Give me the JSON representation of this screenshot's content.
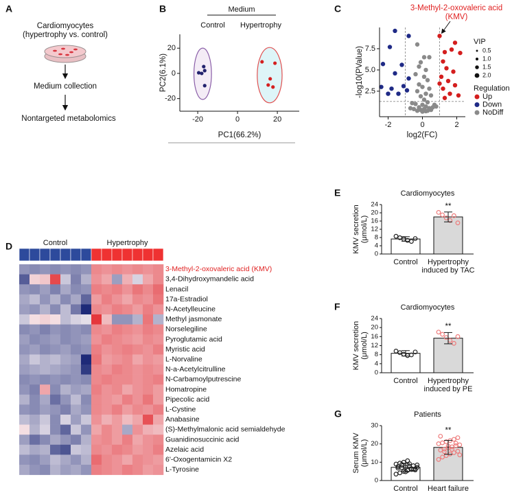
{
  "diagram": {
    "label": "A",
    "lines": [
      "Cardiomyocytes",
      "(hypertrophy vs. control)"
    ],
    "steps": [
      "Medium collection",
      "Nontargeted metabolomics"
    ]
  },
  "chart_data": [
    {
      "type": "scatter",
      "label": "B",
      "header": "Medium",
      "xlabel": "PC1(66.2%)",
      "ylabel": "PC2(6.1%)",
      "xlim": [
        -29,
        31
      ],
      "ylim": [
        -30,
        31
      ],
      "xticks": [
        -20,
        0,
        20
      ],
      "yticks": [
        -20,
        0,
        20
      ],
      "series": [
        {
          "name": "Control",
          "color": "#23236e",
          "ellipse_stroke": "#8a5ea8",
          "ellipse_fill": "#f4ecf6",
          "x": [
            -17,
            -16.5,
            -18,
            -16.5,
            -19.5
          ],
          "y": [
            5.4,
            2.2,
            0,
            -9.7,
            0.5
          ]
        },
        {
          "name": "Hypertrophy",
          "color": "#d42020",
          "ellipse_stroke": "#e05050",
          "ellipse_fill": "#def5f8",
          "x": [
            12.3,
            18.8,
            16.4,
            17.8,
            15.4
          ],
          "y": [
            9.2,
            8.1,
            -4.3,
            -10.8,
            -9.2
          ]
        }
      ]
    },
    {
      "type": "volcano",
      "label": "C",
      "annotation": [
        "3-Methyl-2-oxovaleric acid",
        "(KMV)"
      ],
      "annotation_color": "#e02020",
      "xlabel": "log2(FC)",
      "ylabel": "-log10(PValue)",
      "xlim": [
        -2.5,
        2.5
      ],
      "ylim": [
        -0.5,
        10
      ],
      "xticks": [
        -2,
        0,
        2
      ],
      "yticks": [
        2.5,
        {
          "value": 5,
          "label": "5.0"
        },
        7.5
      ],
      "vlines": [
        -1,
        1
      ],
      "hline": 1.3,
      "size_title": "VIP",
      "sizes": [
        0.5,
        {
          "value": 1,
          "label": "1.0"
        },
        1.5,
        {
          "value": 2,
          "label": "2.0"
        }
      ],
      "legend_title": "Regulation",
      "series": [
        {
          "name": "Up",
          "color": "#d41e1e",
          "x": [
            1.0,
            1.7,
            1.9,
            2.2,
            1.3,
            1.2,
            1.4,
            1.8,
            1.1,
            1.5,
            1.9,
            1.2,
            1.6,
            1.3,
            2.1,
            1.0
          ],
          "y": [
            9.0,
            7.4,
            8.2,
            7.0,
            7.1,
            6.0,
            5.2,
            4.8,
            4.2,
            3.7,
            3.2,
            2.8,
            2.2,
            1.7,
            2.0,
            3.4
          ]
        },
        {
          "name": "Down",
          "color": "#1f2a86",
          "x": [
            -1.6,
            -0.8,
            -1.9,
            -2.3,
            -1.2,
            -1.6,
            -0.8,
            -2.4,
            -1.8,
            -1.4,
            -1.1,
            -0.9,
            -2.0
          ],
          "y": [
            9.6,
            9.0,
            7.7,
            5.7,
            5.6,
            4.6,
            4.0,
            3.0,
            2.8,
            2.2,
            3.1,
            2.6,
            2.2
          ]
        },
        {
          "name": "NoDiff",
          "color": "#8a8a8a",
          "x": [
            -0.3,
            0.1,
            -0.1,
            0.4,
            -0.2,
            0.2,
            -0.4,
            0.1,
            0.3,
            -0.2,
            0.0,
            0.4,
            -0.3,
            0.2,
            0.5,
            -0.1,
            0.1,
            0.3,
            -0.4,
            0.0,
            0.2,
            -0.2,
            0.4,
            0.1,
            -0.1,
            0.3,
            0.0,
            0.6,
            -0.5,
            0.5,
            -0.3,
            0.2,
            -0.6,
            0.7,
            -0.7,
            0.8
          ],
          "y": [
            8.0,
            6.5,
            5.9,
            6.5,
            5.4,
            5.0,
            4.5,
            4.2,
            3.8,
            3.3,
            3.0,
            2.8,
            2.5,
            2.2,
            2.0,
            1.9,
            1.5,
            1.2,
            1.0,
            0.9,
            0.7,
            0.6,
            0.5,
            0.4,
            0.3,
            0.2,
            0.1,
            0.6,
            0.4,
            0.3,
            0.2,
            0.15,
            1.1,
            0.9,
            0.5,
            0.7
          ]
        }
      ]
    },
    {
      "type": "heatmap",
      "label": "D",
      "clim": [
        -2,
        2
      ],
      "low_color": "#1e2a78",
      "mid_color": "#f5eef2",
      "high_color": "#e3262b",
      "highlight_row": 0,
      "highlight_color": "#e02020",
      "groups": [
        {
          "name": "Control",
          "color": "#2d4a9c"
        },
        {
          "name": "Hypertrophy",
          "color": "#ef3232"
        }
      ],
      "rows": [
        "3-Methyl-2-oxovaleric acid (KMV)",
        "3,4-Dihydroxymandelic acid",
        "Lenacil",
        "17a-Estradiol",
        "N-Acetylleucine",
        "Methyl jasmonate",
        "Norselegiline",
        "Pyroglutamic acid",
        "Myristic acid",
        "L-Norvaline",
        "N-a-Acetylcitrulline",
        "N-Carbamoylputrescine",
        "Homatropine",
        "Pipecolic acid",
        "L-Cystine",
        "Anabasine",
        "(S)-Methylmalonic acid semialdehyde",
        "Guanidinosuccinic acid",
        "Azelaic acid",
        "6'-Oxogentamicin X2",
        "L-Tyrosine"
      ],
      "values": [
        [
          -0.8,
          -0.9,
          -0.8,
          -0.9,
          -0.8,
          -0.9,
          -0.8,
          0.9,
          0.8,
          0.9,
          0.8,
          0.9,
          0.8,
          0.9
        ],
        [
          -1.4,
          0.2,
          0.3,
          1.6,
          -0.3,
          -1.0,
          -0.5,
          0.8,
          0.6,
          -0.7,
          0.5,
          -0.2,
          0.6,
          0.9
        ],
        [
          -0.8,
          -0.9,
          -0.7,
          -1.0,
          -0.6,
          -0.9,
          -0.8,
          1.0,
          0.9,
          1.0,
          0.8,
          1.1,
          0.9,
          1.2
        ],
        [
          -0.6,
          -0.4,
          -0.8,
          -0.5,
          -0.9,
          -0.6,
          -1.3,
          0.7,
          1.0,
          0.8,
          0.6,
          0.9,
          0.8,
          1.1
        ],
        [
          -0.7,
          -0.8,
          -0.5,
          -0.9,
          -0.4,
          -1.1,
          -2.0,
          0.9,
          0.8,
          1.0,
          0.9,
          0.7,
          1.0,
          0.8
        ],
        [
          -0.3,
          0.1,
          0.2,
          0.1,
          -0.4,
          -0.2,
          -0.1,
          1.8,
          0.4,
          -0.8,
          -0.8,
          -0.5,
          1.1,
          -0.5
        ],
        [
          -0.9,
          -0.8,
          -1.0,
          -0.8,
          -0.9,
          -0.8,
          -0.9,
          0.9,
          0.8,
          1.0,
          0.9,
          0.8,
          1.0,
          0.9
        ],
        [
          -0.7,
          -0.9,
          -0.8,
          -0.7,
          -0.9,
          -0.8,
          -0.7,
          0.8,
          1.0,
          0.9,
          0.8,
          0.7,
          0.9,
          0.8
        ],
        [
          -0.8,
          -0.7,
          -0.9,
          -0.8,
          -0.7,
          -0.9,
          -0.8,
          1.0,
          0.8,
          0.9,
          1.0,
          0.9,
          0.8,
          1.0
        ],
        [
          -0.6,
          -0.3,
          -0.5,
          -0.4,
          -0.6,
          -0.7,
          -2.4,
          1.1,
          0.7,
          0.8,
          0.9,
          0.6,
          0.8,
          0.7
        ],
        [
          -0.7,
          -0.6,
          -0.5,
          -0.6,
          -0.7,
          -0.8,
          -1.8,
          0.9,
          0.8,
          1.0,
          0.9,
          0.8,
          0.9,
          0.8
        ],
        [
          -0.9,
          -0.8,
          -0.9,
          -0.8,
          -0.9,
          -0.8,
          -0.9,
          0.9,
          1.0,
          0.9,
          0.9,
          0.8,
          0.9,
          1.0
        ],
        [
          -0.8,
          -1.0,
          0.6,
          -0.9,
          -0.5,
          -0.7,
          -0.6,
          1.0,
          0.8,
          0.9,
          0.6,
          0.8,
          0.9,
          0.7
        ],
        [
          -0.5,
          -0.9,
          -0.6,
          -1.2,
          -0.8,
          -0.4,
          -0.9,
          0.9,
          0.8,
          0.7,
          1.0,
          0.8,
          1.1,
          0.7
        ],
        [
          -0.8,
          -0.9,
          -0.7,
          -0.8,
          -1.0,
          -0.6,
          -0.8,
          0.9,
          0.8,
          1.0,
          0.7,
          0.9,
          0.8,
          1.0
        ],
        [
          -0.4,
          -0.6,
          -0.3,
          -0.9,
          -0.2,
          -0.7,
          -0.3,
          0.8,
          0.5,
          0.7,
          0.4,
          0.6,
          1.5,
          0.6
        ],
        [
          0.1,
          -0.5,
          -0.2,
          -0.9,
          -1.3,
          -0.3,
          -0.8,
          0.6,
          0.9,
          0.7,
          -0.6,
          0.8,
          0.5,
          0.4
        ],
        [
          -0.7,
          -1.2,
          -0.9,
          -0.6,
          -0.8,
          -1.0,
          -0.5,
          0.8,
          0.9,
          0.7,
          1.0,
          0.6,
          0.8,
          0.9
        ],
        [
          -0.4,
          -0.6,
          -0.5,
          -1.3,
          -1.5,
          -0.3,
          -0.4,
          0.9,
          0.8,
          1.0,
          0.9,
          0.7,
          0.8,
          1.0
        ],
        [
          -0.8,
          -0.9,
          -0.7,
          -0.4,
          -0.6,
          -0.8,
          -0.5,
          1.2,
          0.9,
          0.8,
          0.6,
          0.9,
          0.8,
          0.7
        ],
        [
          -0.6,
          -0.8,
          -0.9,
          -0.5,
          -0.7,
          -0.6,
          -0.8,
          1.0,
          0.9,
          0.8,
          1.0,
          0.9,
          0.7,
          0.8
        ]
      ]
    },
    {
      "type": "bar",
      "label": "E",
      "title": "Cardiomyocytes",
      "ylabel": [
        "KMV secretion",
        "(μmol/L)"
      ],
      "categories": [
        [
          "Control"
        ],
        [
          "Hypertrophy",
          "induced by TAC"
        ]
      ],
      "values": [
        7.3,
        18
      ],
      "errors": [
        1.1,
        2.4
      ],
      "points": [
        [
          8.6,
          7.9,
          7.2,
          6.6,
          6.1,
          7.5
        ],
        [
          20.2,
          19,
          17.5,
          16.3,
          18.6,
          15.1
        ]
      ],
      "ylim": [
        0,
        24
      ],
      "yticks": [
        0,
        4,
        8,
        12,
        16,
        20,
        24
      ],
      "annotation": "**",
      "colors": [
        "#ffffff",
        "#d9d9d9"
      ],
      "point_colors": [
        "#222222",
        "#ee7b7b"
      ]
    },
    {
      "type": "bar",
      "label": "F",
      "title": "Cardiomyocytes",
      "ylabel": [
        "KMV secretion",
        "(μmol/L)"
      ],
      "categories": [
        [
          "Control"
        ],
        [
          "Hypertrophy",
          "induced by PE"
        ]
      ],
      "values": [
        8.6,
        15.3
      ],
      "errors": [
        1.2,
        2.5
      ],
      "points": [
        [
          9.6,
          8.9,
          8.2,
          7.6,
          7.9,
          9.2
        ],
        [
          18,
          17,
          15.6,
          14.3,
          13,
          16
        ]
      ],
      "ylim": [
        0,
        24
      ],
      "yticks": [
        0,
        4,
        8,
        12,
        16,
        20,
        24
      ],
      "annotation": "**",
      "colors": [
        "#ffffff",
        "#d9d9d9"
      ],
      "point_colors": [
        "#222222",
        "#ee7b7b"
      ]
    },
    {
      "type": "bar",
      "label": "G",
      "title": "Patients",
      "ylabel": [
        "Serum KMV",
        "(μmol/L)"
      ],
      "categories": [
        [
          "Control"
        ],
        [
          "Heart failure"
        ]
      ],
      "values": [
        7.2,
        18.1
      ],
      "errors": [
        2.2,
        3.8
      ],
      "points": [
        [
          3.5,
          4.2,
          5,
          5.5,
          6,
          6.3,
          6.8,
          7,
          7.4,
          7.8,
          8.1,
          8.5,
          9,
          9.5,
          10,
          10.8,
          6.5,
          5.8,
          7.6,
          8.8,
          4.8,
          9.2,
          6.1,
          7.2
        ],
        [
          11.5,
          12.8,
          13.6,
          14.5,
          15.2,
          16,
          16.6,
          17.2,
          17.8,
          18.4,
          19,
          19.5,
          20.1,
          20.6,
          21.2,
          21.8,
          22.5,
          23.4,
          24.2,
          15.8,
          18.8,
          17,
          20.4,
          14
        ]
      ],
      "ylim": [
        0,
        30
      ],
      "yticks": [
        0,
        10,
        20,
        30
      ],
      "annotation": "**",
      "colors": [
        "#ffffff",
        "#d9d9d9"
      ],
      "point_colors": [
        "#222222",
        "#ee7b7b"
      ]
    }
  ]
}
